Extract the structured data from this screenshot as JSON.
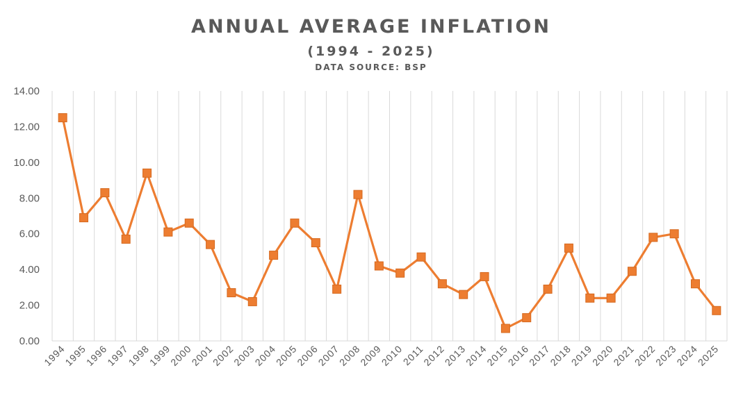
{
  "chart_data": {
    "type": "line",
    "title": "ANNUAL AVERAGE INFLATION",
    "subtitle": "(1994 - 2025)",
    "source": "DATA SOURCE: BSP",
    "xlabel": "",
    "ylabel": "",
    "ylim": [
      0,
      14
    ],
    "yticks": [
      "0.00",
      "2.00",
      "4.00",
      "6.00",
      "8.00",
      "10.00",
      "12.00",
      "14.00"
    ],
    "grid": "vertical",
    "legend": "none",
    "categories": [
      "1994",
      "1995",
      "1996",
      "1997",
      "1998",
      "1999",
      "2000",
      "2001",
      "2002",
      "2003",
      "2004",
      "2005",
      "2006",
      "2007",
      "2008",
      "2009",
      "2010",
      "2011",
      "2012",
      "2013",
      "2014",
      "2015",
      "2016",
      "2017",
      "2018",
      "2019",
      "2020",
      "2021",
      "2022",
      "2023",
      "2024",
      "2025"
    ],
    "series": [
      {
        "name": "Annual Average Inflation",
        "color": "#ed7d31",
        "values": [
          12.5,
          6.9,
          8.3,
          5.7,
          9.4,
          6.1,
          6.6,
          5.4,
          2.7,
          2.2,
          4.8,
          6.6,
          5.5,
          2.9,
          8.2,
          4.2,
          3.8,
          4.7,
          3.2,
          2.6,
          3.6,
          0.7,
          1.3,
          2.9,
          5.2,
          2.4,
          2.4,
          3.9,
          5.8,
          6.0,
          3.2,
          1.7
        ]
      }
    ]
  }
}
